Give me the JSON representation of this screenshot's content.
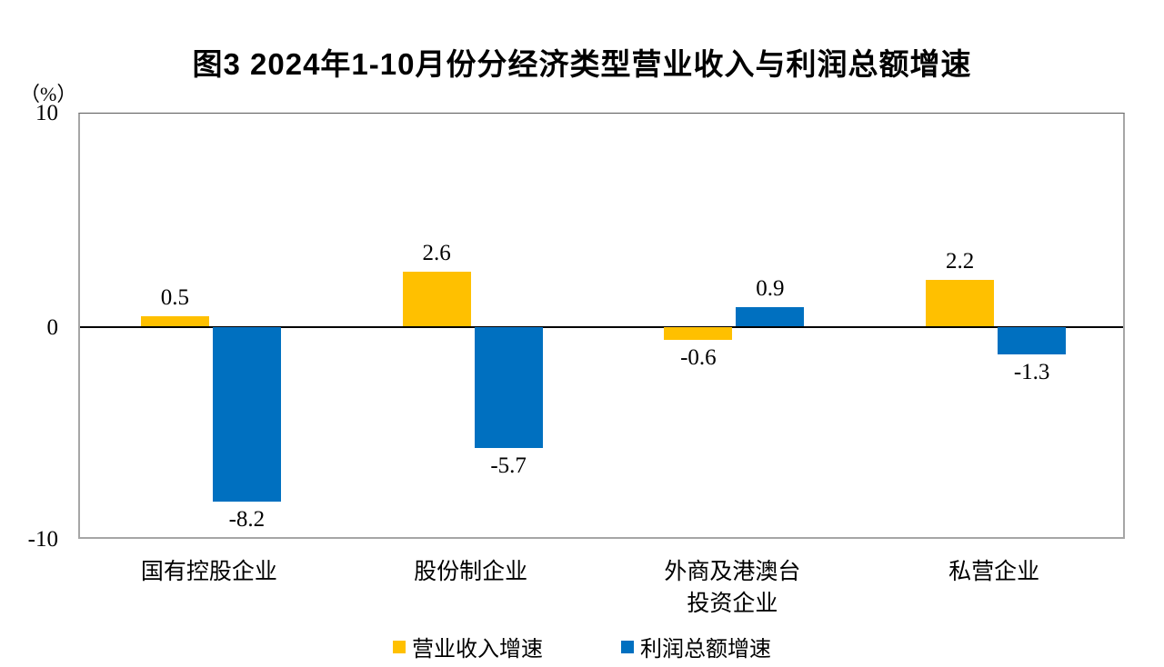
{
  "title": "图3 2024年1-10月份分经济类型营业收入与利润总额增速",
  "unit_label": "（%）",
  "y_ticks": [
    {
      "label": "10",
      "value": 10
    },
    {
      "label": "0",
      "value": 0
    },
    {
      "label": "-10",
      "value": -10
    }
  ],
  "legend": [
    {
      "label": "营业收入增速",
      "color": "#FFC000"
    },
    {
      "label": "利润总额增速",
      "color": "#0070C0"
    }
  ],
  "colors": {
    "revenue": "#FFC000",
    "profit": "#0070C0",
    "zero_line": "#000000",
    "axis_frame": "#a6a6a6"
  },
  "chart_data": {
    "type": "bar",
    "title": "图3 2024年1-10月份分经济类型营业收入与利润总额增速",
    "ylabel": "（%）",
    "categories": [
      "国有控股企业",
      "股份制企业",
      "外商及港澳台\n投资企业",
      "私营企业"
    ],
    "series": [
      {
        "name": "营业收入增速",
        "color": "#FFC000",
        "values": [
          0.5,
          2.6,
          -0.6,
          2.2
        ]
      },
      {
        "name": "利润总额增速",
        "color": "#0070C0",
        "values": [
          -8.2,
          -5.7,
          0.9,
          -1.3
        ]
      }
    ],
    "ylim": [
      -10,
      10
    ],
    "y_tick_values": [
      10,
      0,
      -10
    ],
    "grid": false,
    "legend_position": "bottom",
    "data_labels": true
  }
}
